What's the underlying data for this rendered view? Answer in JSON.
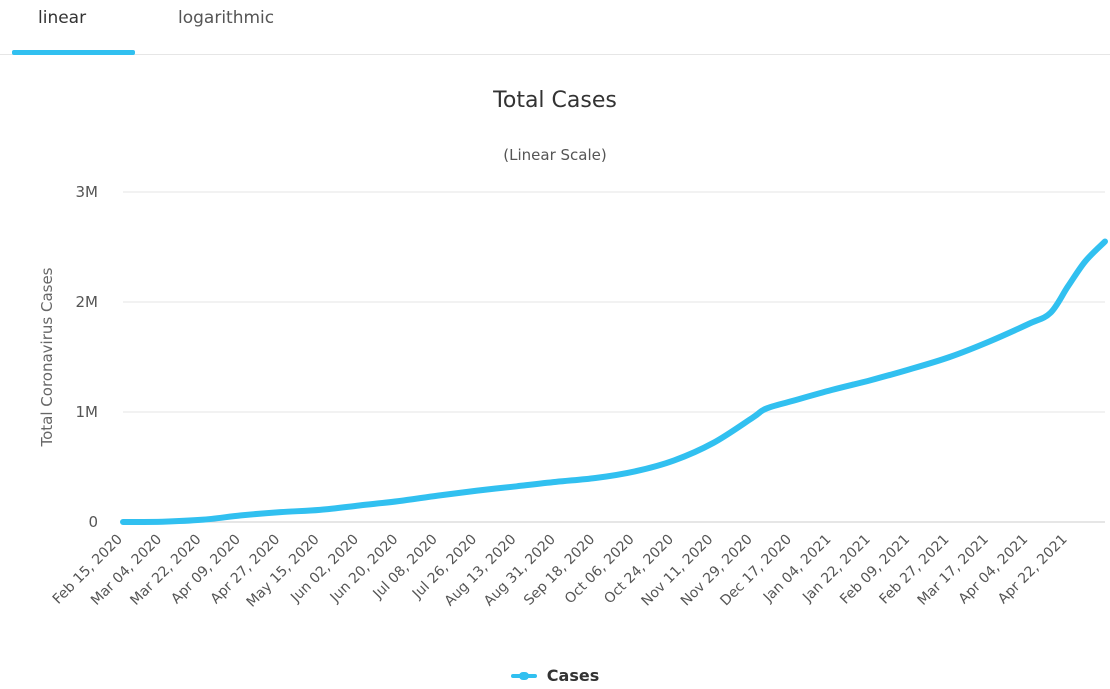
{
  "tabs": [
    {
      "label": "linear",
      "active": true
    },
    {
      "label": "logarithmic",
      "active": false
    }
  ],
  "colors": {
    "series": "#31c0f0",
    "grid": "#e6e6e6",
    "text": "#333333",
    "axis_text": "#666666"
  },
  "chart_data": {
    "type": "line",
    "title": "Total Cases",
    "subtitle": "(Linear Scale)",
    "ylabel": "Total Coronavirus Cases",
    "xlabel": "",
    "ylim": [
      0,
      3000000
    ],
    "y_ticks": [
      {
        "value": 0,
        "label": "0"
      },
      {
        "value": 1000000,
        "label": "1M"
      },
      {
        "value": 2000000,
        "label": "2M"
      },
      {
        "value": 3000000,
        "label": "3M"
      }
    ],
    "grid": true,
    "legend_position": "bottom-center",
    "x_tick_labels": [
      "Feb 15, 2020",
      "Mar 04, 2020",
      "Mar 22, 2020",
      "Apr 09, 2020",
      "Apr 27, 2020",
      "May 15, 2020",
      "Jun 02, 2020",
      "Jun 20, 2020",
      "Jul 08, 2020",
      "Jul 26, 2020",
      "Aug 13, 2020",
      "Aug 31, 2020",
      "Sep 18, 2020",
      "Oct 06, 2020",
      "Oct 24, 2020",
      "Nov 11, 2020",
      "Nov 29, 2020",
      "Dec 17, 2020",
      "Jan 04, 2021",
      "Jan 22, 2021",
      "Feb 09, 2021",
      "Feb 27, 2021",
      "Mar 17, 2021",
      "Apr 04, 2021",
      "Apr 22, 2021"
    ],
    "x_end": "May 09, 2021",
    "series": [
      {
        "name": "Cases",
        "points": [
          {
            "date": "Feb 15, 2020",
            "value": 0
          },
          {
            "date": "Mar 04, 2020",
            "value": 3000
          },
          {
            "date": "Mar 22, 2020",
            "value": 20000
          },
          {
            "date": "Apr 09, 2020",
            "value": 60000
          },
          {
            "date": "Apr 27, 2020",
            "value": 90000
          },
          {
            "date": "May 15, 2020",
            "value": 110000
          },
          {
            "date": "Jun 02, 2020",
            "value": 150000
          },
          {
            "date": "Jun 20, 2020",
            "value": 190000
          },
          {
            "date": "Jul 08, 2020",
            "value": 240000
          },
          {
            "date": "Jul 26, 2020",
            "value": 285000
          },
          {
            "date": "Aug 13, 2020",
            "value": 325000
          },
          {
            "date": "Aug 31, 2020",
            "value": 365000
          },
          {
            "date": "Sep 18, 2020",
            "value": 400000
          },
          {
            "date": "Oct 06, 2020",
            "value": 460000
          },
          {
            "date": "Oct 24, 2020",
            "value": 560000
          },
          {
            "date": "Nov 11, 2020",
            "value": 720000
          },
          {
            "date": "Nov 29, 2020",
            "value": 950000
          },
          {
            "date": "Dec 05, 2020",
            "value": 1030000
          },
          {
            "date": "Dec 17, 2020",
            "value": 1100000
          },
          {
            "date": "Jan 04, 2021",
            "value": 1200000
          },
          {
            "date": "Jan 22, 2021",
            "value": 1290000
          },
          {
            "date": "Feb 09, 2021",
            "value": 1390000
          },
          {
            "date": "Feb 27, 2021",
            "value": 1500000
          },
          {
            "date": "Mar 17, 2021",
            "value": 1640000
          },
          {
            "date": "Apr 04, 2021",
            "value": 1800000
          },
          {
            "date": "Apr 14, 2021",
            "value": 1900000
          },
          {
            "date": "Apr 22, 2021",
            "value": 2140000
          },
          {
            "date": "Apr 30, 2021",
            "value": 2370000
          },
          {
            "date": "May 09, 2021",
            "value": 2550000
          }
        ]
      }
    ]
  },
  "legend": {
    "label": "Cases"
  }
}
